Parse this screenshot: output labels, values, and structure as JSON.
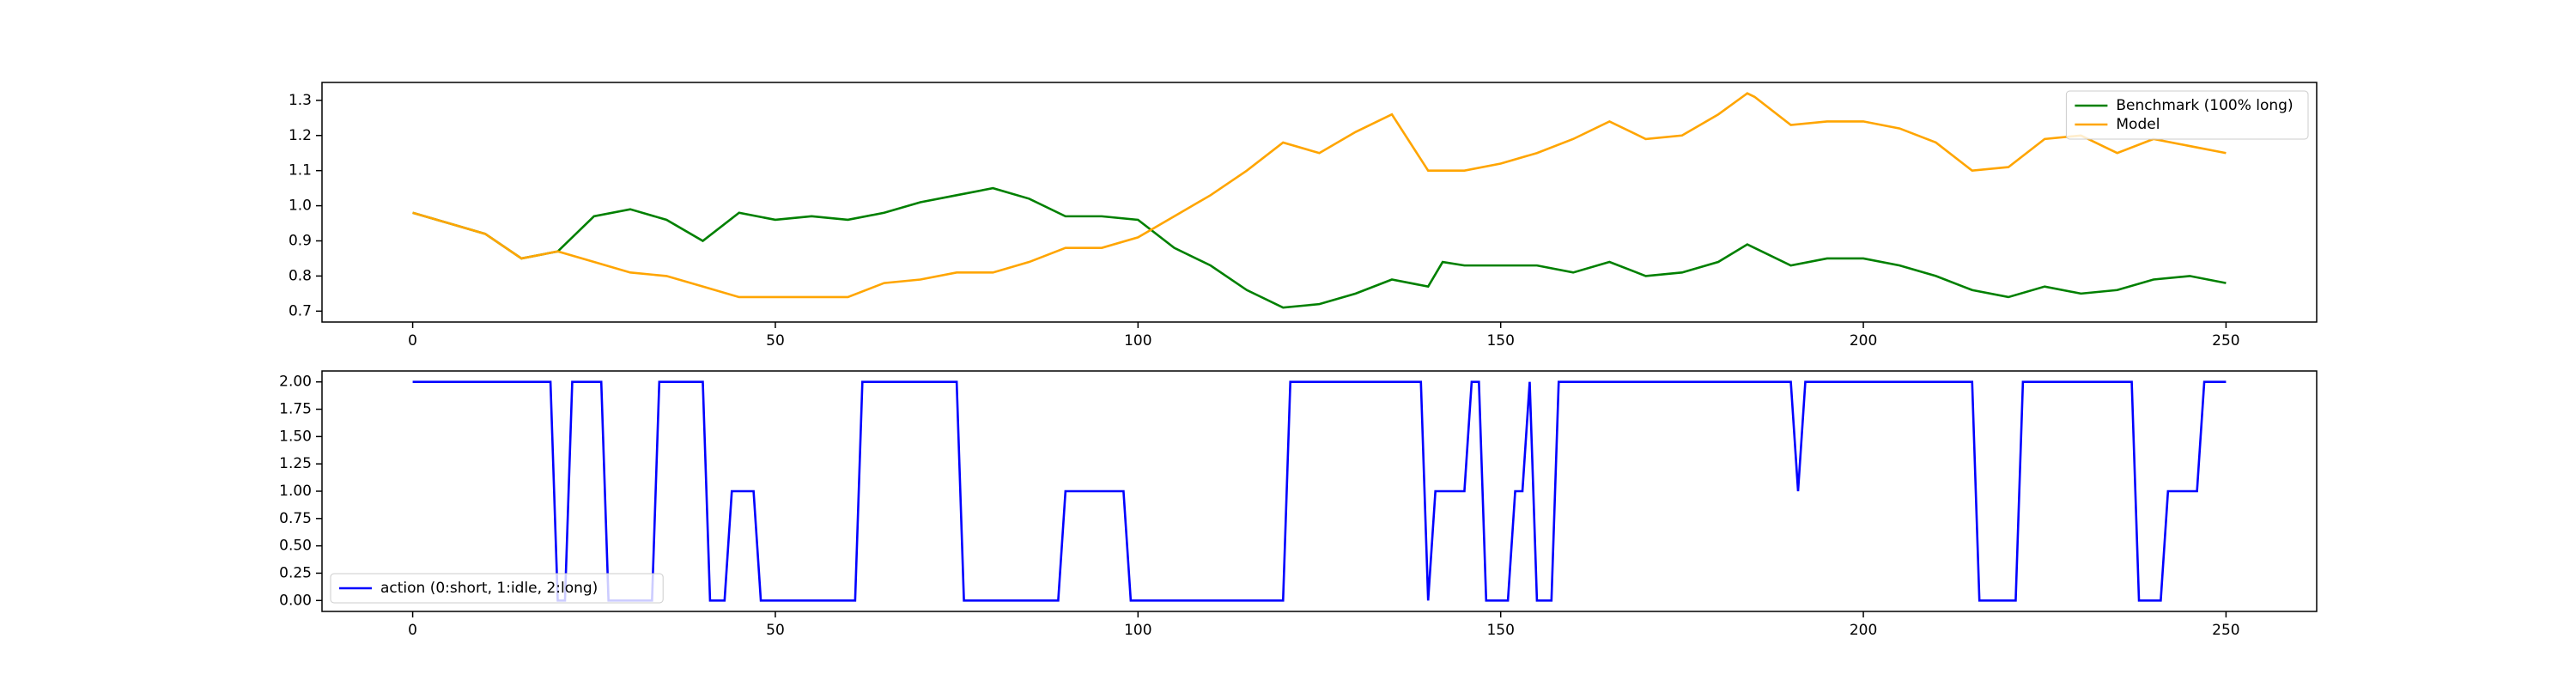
{
  "chart_data": [
    {
      "type": "line",
      "x": [
        0,
        5,
        10,
        15,
        20,
        25,
        30,
        35,
        40,
        45,
        50,
        55,
        60,
        65,
        70,
        75,
        80,
        85,
        90,
        95,
        100,
        105,
        110,
        115,
        120,
        125,
        130,
        135,
        140,
        142,
        145,
        150,
        155,
        160,
        165,
        170,
        175,
        180,
        184,
        185,
        190,
        195,
        200,
        205,
        210,
        215,
        220,
        225,
        230,
        235,
        240,
        245,
        250
      ],
      "series": [
        {
          "name": "Benchmark (100% long)",
          "color": "#008000",
          "values": [
            0.98,
            0.95,
            0.92,
            0.85,
            0.87,
            0.97,
            0.99,
            0.96,
            0.9,
            0.98,
            0.96,
            0.97,
            0.96,
            0.98,
            1.01,
            1.03,
            1.05,
            1.02,
            0.97,
            0.97,
            0.96,
            0.88,
            0.83,
            0.76,
            0.71,
            0.72,
            0.75,
            0.79,
            0.77,
            0.84,
            0.83,
            0.83,
            0.83,
            0.81,
            0.84,
            0.8,
            0.81,
            0.84,
            0.89,
            0.88,
            0.83,
            0.85,
            0.85,
            0.83,
            0.8,
            0.76,
            0.74,
            0.77,
            0.75,
            0.76,
            0.79,
            0.8,
            0.78
          ]
        },
        {
          "name": "Model",
          "color": "#ffa500",
          "values": [
            0.98,
            0.95,
            0.92,
            0.85,
            0.87,
            0.84,
            0.81,
            0.8,
            0.77,
            0.74,
            0.74,
            0.74,
            0.74,
            0.78,
            0.79,
            0.81,
            0.81,
            0.84,
            0.88,
            0.88,
            0.91,
            0.97,
            1.03,
            1.1,
            1.18,
            1.15,
            1.21,
            1.26,
            1.1,
            1.1,
            1.1,
            1.12,
            1.15,
            1.19,
            1.24,
            1.19,
            1.2,
            1.26,
            1.32,
            1.31,
            1.23,
            1.24,
            1.24,
            1.22,
            1.18,
            1.1,
            1.11,
            1.19,
            1.2,
            1.15,
            1.19,
            1.17,
            1.15
          ]
        }
      ],
      "xlim": [
        -12.5,
        262.5
      ],
      "xticks": [
        0,
        50,
        100,
        150,
        200,
        250
      ],
      "ylim": [
        0.669,
        1.351
      ],
      "yticks": [
        0.7,
        0.8,
        0.9,
        {
          "value": 1,
          "label": "1.0"
        },
        1.1,
        1.2,
        1.3
      ],
      "legend": "upper right"
    },
    {
      "type": "line",
      "x": [
        0,
        19,
        20,
        21,
        22,
        26,
        27,
        33,
        34,
        40,
        41,
        43,
        44,
        47,
        48,
        61,
        62,
        75,
        76,
        89,
        90,
        98,
        99,
        120,
        121,
        139,
        140,
        141,
        145,
        146,
        147,
        148,
        151,
        152,
        153,
        154,
        155,
        157,
        158,
        190,
        191,
        192,
        215,
        216,
        221,
        222,
        237,
        238,
        241,
        242,
        246,
        247,
        250
      ],
      "series": [
        {
          "name": "action (0:short, 1:idle, 2:long)",
          "color": "#0000ff",
          "values": [
            2,
            2,
            0,
            0,
            2,
            2,
            0,
            0,
            2,
            2,
            0,
            0,
            1,
            1,
            0,
            0,
            2,
            2,
            0,
            0,
            1,
            1,
            0,
            0,
            2,
            2,
            0,
            1,
            1,
            2,
            2,
            0,
            0,
            1,
            1,
            2,
            0,
            0,
            2,
            2,
            1,
            2,
            2,
            0,
            0,
            2,
            2,
            0,
            0,
            1,
            1,
            2,
            2
          ]
        }
      ],
      "xlim": [
        -12.5,
        262.5
      ],
      "xticks": [
        0,
        50,
        100,
        150,
        200,
        250
      ],
      "ylim": [
        -0.1,
        2.1
      ],
      "yticks": [
        {
          "value": 0,
          "label": "0.00"
        },
        {
          "value": 0.25,
          "label": "0.25"
        },
        {
          "value": 0.5,
          "label": "0.50"
        },
        {
          "value": 0.75,
          "label": "0.75"
        },
        {
          "value": 1,
          "label": "1.00"
        },
        {
          "value": 1.25,
          "label": "1.25"
        },
        {
          "value": 1.5,
          "label": "1.50"
        },
        {
          "value": 1.75,
          "label": "1.75"
        },
        {
          "value": 2,
          "label": "2.00"
        }
      ],
      "legend": "lower left"
    }
  ]
}
